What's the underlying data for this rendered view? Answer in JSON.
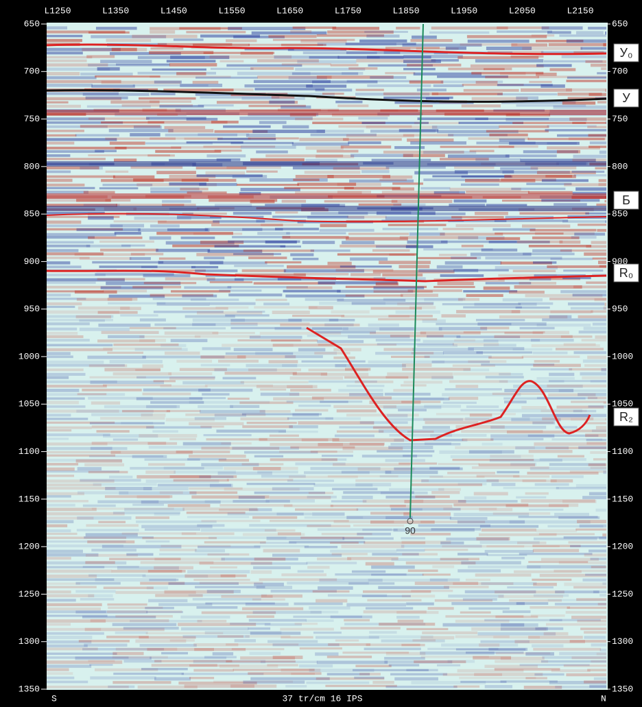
{
  "top_labels": [
    "L1250",
    "L1350",
    "L1450",
    "L1550",
    "L1650",
    "L1750",
    "L1850",
    "L1950",
    "L2050",
    "L2150"
  ],
  "left_ticks": [
    650,
    700,
    750,
    800,
    850,
    900,
    950,
    1000,
    1050,
    1100,
    1150,
    1200,
    1250,
    1300,
    1350
  ],
  "right_ticks": [
    650,
    700,
    750,
    800,
    850,
    900,
    950,
    1000,
    1050,
    1100,
    1150,
    1200,
    1250,
    1300,
    1350
  ],
  "horizon_labels": [
    "У₀",
    "У",
    "Б",
    "R₀",
    "R₂"
  ],
  "well_label": "90",
  "footer": {
    "left": "S",
    "center": "37 tr/cm 16 IPS",
    "right": "N"
  }
}
